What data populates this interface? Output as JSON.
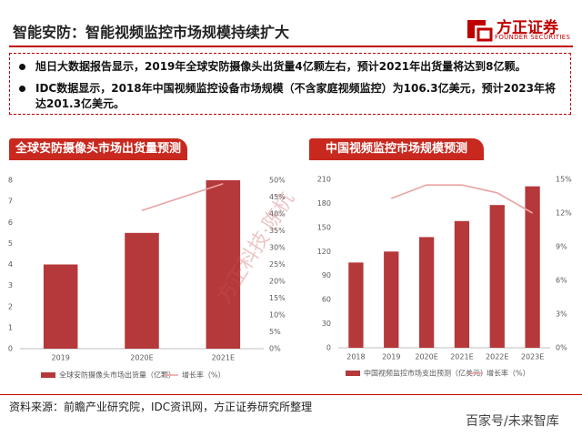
{
  "header": {
    "title": "智能安防：智能视频监控市场规模持续扩大",
    "logo_name": "方正证券",
    "logo_subtitle": "FOUNDER SECURITIES"
  },
  "bullets": [
    "旭日大数据报告显示，2019年全球安防摄像头出货量4亿颗左右，预计2021年出货量将达到8亿颗。",
    "IDC数据显示，2018年中国视频监控设备市场规模（不含家庭视频监控）为106.3亿美元，预计2023年将达201.3亿美元。"
  ],
  "watermark": "方正科技·陈杭",
  "footer": {
    "source": "资料来源：前瞻产业研究院，IDC资讯网，方正证券研究所整理",
    "credit": "百家号/未来智库"
  },
  "chart_data": [
    {
      "type": "bar",
      "title": "全球安防摄像头市场出货量预测",
      "categories": [
        "2019",
        "2020E",
        "2021E"
      ],
      "series": [
        {
          "name": "全球安防摄像头市场出货量（亿颗）",
          "color": "#b5383a",
          "values": [
            4,
            5.5,
            8
          ]
        },
        {
          "name": "增长率（%）",
          "type": "line",
          "axis": "y2",
          "color": "#eaa3a3",
          "values": [
            null,
            41,
            49
          ]
        }
      ],
      "ylim": [
        0,
        8
      ],
      "yticks": [
        0,
        1,
        2,
        3,
        4,
        5,
        6,
        7,
        8
      ],
      "y2lim": [
        0,
        50
      ],
      "y2ticks": [
        {
          "value": 0,
          "label": "0%"
        },
        {
          "value": 5,
          "label": "5%"
        },
        {
          "value": 10,
          "label": "10%"
        },
        {
          "value": 15,
          "label": "15%"
        },
        {
          "value": 20,
          "label": "20%"
        },
        {
          "value": 25,
          "label": "25%"
        },
        {
          "value": 30,
          "label": "30%"
        },
        {
          "value": 35,
          "label": "35%"
        },
        {
          "value": 40,
          "label": "40%"
        },
        {
          "value": 45,
          "label": "45%"
        },
        {
          "value": 50,
          "label": "50%"
        }
      ],
      "legend": "bottom",
      "grid": false
    },
    {
      "type": "bar",
      "title": "中国视频监控市场规模预测",
      "categories": [
        "2018",
        "2019",
        "2020E",
        "2021E",
        "2022E",
        "2023E"
      ],
      "series": [
        {
          "name": "中国视频监控市场支出预测（亿美元）",
          "color": "#b5383a",
          "values": [
            106.3,
            120,
            138,
            158,
            178,
            201.3
          ]
        },
        {
          "name": "增长率（%）",
          "type": "line",
          "axis": "y2",
          "color": "#eaa3a3",
          "values": [
            null,
            13.3,
            14.5,
            14.5,
            13.8,
            12
          ]
        }
      ],
      "ylim": [
        0,
        210
      ],
      "yticks": [
        0,
        30,
        60,
        90,
        120,
        150,
        180,
        210
      ],
      "y2lim": [
        0,
        15
      ],
      "y2ticks": [
        {
          "value": 0,
          "label": "0%"
        },
        {
          "value": 3,
          "label": "3%"
        },
        {
          "value": 6,
          "label": "6%"
        },
        {
          "value": 9,
          "label": "9%"
        },
        {
          "value": 12,
          "label": "12%"
        },
        {
          "value": 15,
          "label": "15%"
        }
      ],
      "legend": "bottom",
      "grid": false
    }
  ]
}
